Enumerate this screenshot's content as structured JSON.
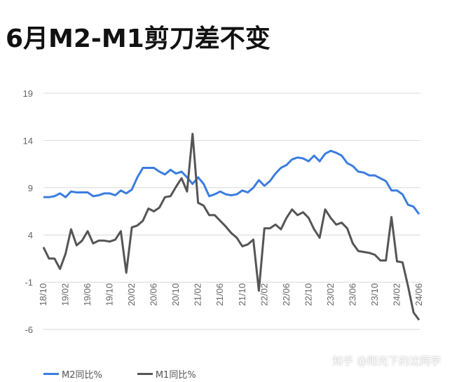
{
  "title": "6月M2-M1剪刀差不变",
  "watermark": "知乎 @阳光下的沈同学",
  "colors": {
    "m2": "#3b7de0",
    "m1": "#555555",
    "grid": "#d9d9d9"
  },
  "chart_data": {
    "type": "line",
    "title": "6月M2-M1剪刀差不变",
    "ylim": [
      -6,
      19
    ],
    "yticks": [
      19,
      14,
      9,
      4,
      -1,
      -6
    ],
    "x_labels": [
      "18/10",
      "19/02",
      "19/06",
      "19/10",
      "20/02",
      "20/06",
      "20/10",
      "21/02",
      "21/06",
      "21/10",
      "22/02",
      "22/06",
      "22/10",
      "23/02",
      "23/06",
      "23/10",
      "24/02",
      "24/06"
    ],
    "legend_position": "bottom-left",
    "grid": true,
    "x": [
      "18/10",
      "18/11",
      "18/12",
      "19/01",
      "19/02",
      "19/03",
      "19/04",
      "19/05",
      "19/06",
      "19/07",
      "19/08",
      "19/09",
      "19/10",
      "19/11",
      "19/12",
      "20/01",
      "20/02",
      "20/03",
      "20/04",
      "20/05",
      "20/06",
      "20/07",
      "20/08",
      "20/09",
      "20/10",
      "20/11",
      "20/12",
      "21/01",
      "21/02",
      "21/03",
      "21/04",
      "21/05",
      "21/06",
      "21/07",
      "21/08",
      "21/09",
      "21/10",
      "21/11",
      "21/12",
      "22/01",
      "22/02",
      "22/03",
      "22/04",
      "22/05",
      "22/06",
      "22/07",
      "22/08",
      "22/09",
      "22/10",
      "22/11",
      "22/12",
      "23/01",
      "23/02",
      "23/03",
      "23/04",
      "23/05",
      "23/06",
      "23/07",
      "23/08",
      "23/09",
      "23/10",
      "23/11",
      "23/12",
      "24/01",
      "24/02",
      "24/03",
      "24/04",
      "24/05",
      "24/06"
    ],
    "series": [
      {
        "name": "M2同比%",
        "values": [
          8.0,
          8.0,
          8.1,
          8.4,
          8.0,
          8.6,
          8.5,
          8.5,
          8.5,
          8.1,
          8.2,
          8.4,
          8.4,
          8.2,
          8.7,
          8.4,
          8.8,
          10.1,
          11.1,
          11.1,
          11.1,
          10.7,
          10.4,
          10.9,
          10.5,
          10.7,
          10.1,
          9.4,
          10.1,
          9.4,
          8.1,
          8.3,
          8.6,
          8.3,
          8.2,
          8.3,
          8.7,
          8.5,
          9.0,
          9.8,
          9.2,
          9.7,
          10.5,
          11.1,
          11.4,
          12.0,
          12.2,
          12.1,
          11.8,
          12.4,
          11.8,
          12.6,
          12.9,
          12.7,
          12.4,
          11.6,
          11.3,
          10.7,
          10.6,
          10.3,
          10.3,
          10.0,
          9.7,
          8.7,
          8.7,
          8.3,
          7.2,
          7.0,
          6.2
        ]
      },
      {
        "name": "M1同比%",
        "values": [
          2.7,
          1.5,
          1.5,
          0.4,
          2.0,
          4.6,
          2.9,
          3.4,
          4.4,
          3.1,
          3.4,
          3.4,
          3.3,
          3.5,
          4.4,
          0.0,
          4.8,
          5.0,
          5.5,
          6.8,
          6.5,
          6.9,
          8.0,
          8.1,
          9.1,
          10.0,
          8.6,
          14.7,
          7.4,
          7.1,
          6.1,
          6.1,
          5.5,
          4.9,
          4.2,
          3.7,
          2.8,
          3.0,
          3.5,
          -1.9,
          4.7,
          4.7,
          5.1,
          4.6,
          5.8,
          6.7,
          6.1,
          6.4,
          5.8,
          4.6,
          3.7,
          6.7,
          5.8,
          5.1,
          5.3,
          4.7,
          3.1,
          2.3,
          2.2,
          2.1,
          1.9,
          1.3,
          1.3,
          5.9,
          1.2,
          1.1,
          -1.4,
          -4.2,
          -5.0
        ]
      }
    ]
  },
  "legend": [
    {
      "label": "M2同比%",
      "color": "#3b7de0"
    },
    {
      "label": "M1同比%",
      "color": "#555555"
    }
  ]
}
